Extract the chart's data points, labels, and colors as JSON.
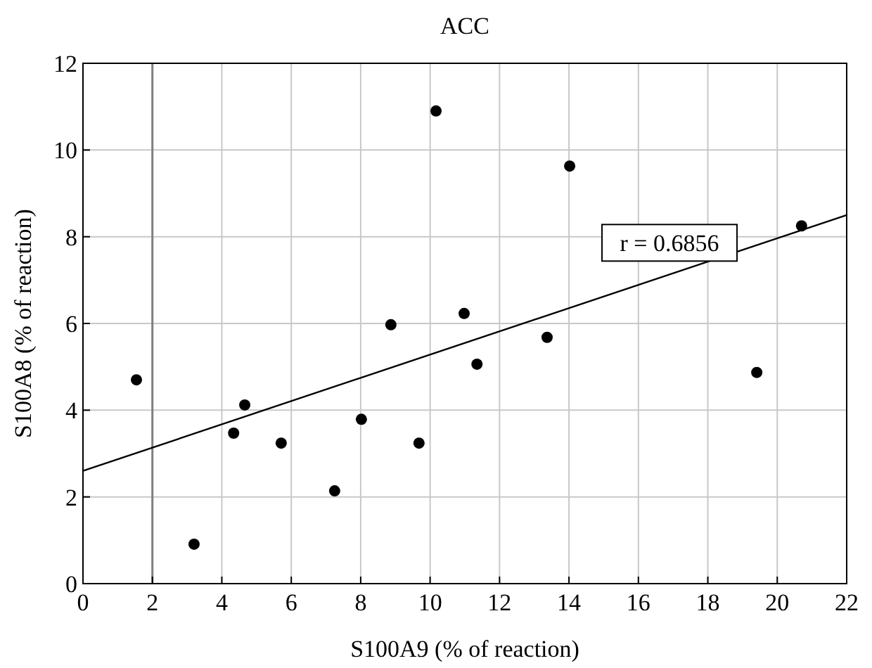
{
  "chart_data": {
    "type": "scatter",
    "title": "ACC",
    "xlabel": "S100A9 (% of reaction)",
    "ylabel": "S100A8 (% of reaction)",
    "xlim": [
      0,
      22
    ],
    "ylim": [
      0,
      12
    ],
    "xticks": [
      0,
      2,
      4,
      6,
      8,
      10,
      12,
      14,
      16,
      18,
      20,
      22
    ],
    "yticks": [
      0,
      2,
      4,
      6,
      8,
      10,
      12
    ],
    "grid": true,
    "series": [
      {
        "color": "#000000",
        "marker": "circle",
        "x": [
          1.54,
          3.2,
          4.34,
          4.66,
          5.71,
          7.25,
          8.02,
          8.87,
          9.68,
          10.17,
          10.98,
          11.35,
          13.37,
          14.02,
          19.41,
          20.7
        ],
        "values": [
          4.7,
          0.91,
          3.47,
          4.12,
          3.24,
          2.14,
          3.79,
          5.97,
          3.24,
          10.9,
          6.23,
          5.06,
          5.68,
          9.63,
          4.87,
          8.25
        ]
      },
      {
        "type": "line",
        "color": "#000000",
        "x": [
          0,
          22
        ],
        "values": [
          2.6,
          8.5
        ],
        "line_style": "solid",
        "marker": "none"
      }
    ],
    "ref_lines": [
      {
        "axis": "x",
        "value": 2,
        "color": "#808080"
      }
    ],
    "annotations": [
      "r = 0.6856"
    ]
  }
}
